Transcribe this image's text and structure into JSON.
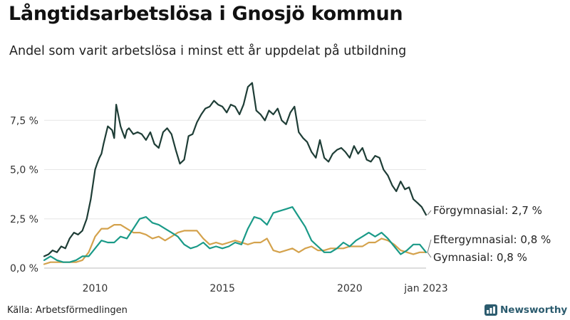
{
  "title": "Långtidsarbetslösa i Gnosjö kommun",
  "subtitle": "Andel som varit arbetslösa i minst ett år uppdelat på utbildning",
  "source": "Källa: Arbetsförmedlingen",
  "brand": {
    "name": "Newsworthy",
    "color": "#2b5b6e"
  },
  "chart_data": {
    "type": "line",
    "x_range": [
      2008.0,
      2023.0
    ],
    "ylim": [
      0,
      10
    ],
    "y_ticks": [
      0,
      2.5,
      5,
      7.5
    ],
    "y_tick_labels": [
      "0,0 %",
      "2,5 %",
      "5,0 %",
      "7,5 %"
    ],
    "x_ticks": [
      2010,
      2015,
      2020,
      2023.0
    ],
    "x_tick_labels": [
      "2010",
      "2015",
      "2020",
      "jan 2023"
    ],
    "grid": true,
    "legend": "direct-labels-right",
    "series": [
      {
        "name": "Förgymnasial",
        "end_label": "Förgymnasial: 2,7 %",
        "color": "#1e3d36",
        "x": [
          2008.0,
          2008.17,
          2008.33,
          2008.5,
          2008.67,
          2008.83,
          2009.0,
          2009.17,
          2009.33,
          2009.5,
          2009.67,
          2009.83,
          2010.0,
          2010.08,
          2010.17,
          2010.25,
          2010.33,
          2010.5,
          2010.67,
          2010.75,
          2010.83,
          2011.0,
          2011.08,
          2011.17,
          2011.25,
          2011.33,
          2011.5,
          2011.67,
          2011.83,
          2012.0,
          2012.17,
          2012.33,
          2012.5,
          2012.67,
          2012.83,
          2013.0,
          2013.17,
          2013.33,
          2013.5,
          2013.67,
          2013.83,
          2014.0,
          2014.17,
          2014.33,
          2014.5,
          2014.67,
          2014.83,
          2015.0,
          2015.17,
          2015.33,
          2015.5,
          2015.67,
          2015.83,
          2016.0,
          2016.17,
          2016.25,
          2016.33,
          2016.5,
          2016.67,
          2016.83,
          2017.0,
          2017.17,
          2017.33,
          2017.5,
          2017.67,
          2017.83,
          2018.0,
          2018.17,
          2018.33,
          2018.5,
          2018.67,
          2018.83,
          2019.0,
          2019.17,
          2019.33,
          2019.5,
          2019.67,
          2019.83,
          2020.0,
          2020.17,
          2020.33,
          2020.5,
          2020.67,
          2020.83,
          2021.0,
          2021.17,
          2021.33,
          2021.5,
          2021.67,
          2021.83,
          2022.0,
          2022.17,
          2022.33,
          2022.5,
          2022.67,
          2022.83,
          2023.0
        ],
        "values": [
          0.6,
          0.7,
          0.9,
          0.8,
          1.1,
          1.0,
          1.5,
          1.8,
          1.7,
          1.9,
          2.5,
          3.5,
          5.0,
          5.3,
          5.6,
          5.8,
          6.3,
          7.2,
          7.0,
          6.6,
          8.3,
          7.2,
          6.9,
          6.6,
          7.0,
          7.1,
          6.8,
          6.9,
          6.8,
          6.5,
          6.9,
          6.3,
          6.1,
          6.9,
          7.1,
          6.8,
          6.0,
          5.3,
          5.5,
          6.7,
          6.8,
          7.4,
          7.8,
          8.1,
          8.2,
          8.5,
          8.3,
          8.2,
          7.9,
          8.3,
          8.2,
          7.8,
          8.3,
          9.2,
          9.4,
          8.7,
          8.0,
          7.8,
          7.5,
          8.0,
          7.8,
          8.1,
          7.5,
          7.3,
          7.9,
          8.2,
          6.9,
          6.6,
          6.4,
          5.9,
          5.6,
          6.5,
          5.6,
          5.4,
          5.8,
          6.0,
          6.1,
          5.9,
          5.6,
          6.2,
          5.8,
          6.1,
          5.5,
          5.4,
          5.7,
          5.6,
          5.0,
          4.7,
          4.2,
          3.9,
          4.4,
          4.0,
          4.1,
          3.5,
          3.3,
          3.1,
          2.7
        ]
      },
      {
        "name": "Eftergymnasial",
        "end_label": "Eftergymnasial: 0,8 %",
        "color": "#1a9a88",
        "x": [
          2008.0,
          2008.25,
          2008.5,
          2008.75,
          2009.0,
          2009.25,
          2009.5,
          2009.75,
          2010.0,
          2010.25,
          2010.5,
          2010.75,
          2011.0,
          2011.25,
          2011.5,
          2011.75,
          2012.0,
          2012.25,
          2012.5,
          2012.75,
          2013.0,
          2013.25,
          2013.5,
          2013.75,
          2014.0,
          2014.25,
          2014.5,
          2014.75,
          2015.0,
          2015.25,
          2015.5,
          2015.75,
          2016.0,
          2016.25,
          2016.5,
          2016.75,
          2017.0,
          2017.25,
          2017.5,
          2017.75,
          2018.0,
          2018.25,
          2018.5,
          2018.75,
          2019.0,
          2019.25,
          2019.5,
          2019.75,
          2020.0,
          2020.25,
          2020.5,
          2020.75,
          2021.0,
          2021.25,
          2021.5,
          2021.75,
          2022.0,
          2022.25,
          2022.5,
          2022.75,
          2023.0
        ],
        "values": [
          0.4,
          0.6,
          0.4,
          0.3,
          0.3,
          0.4,
          0.6,
          0.6,
          1.0,
          1.4,
          1.3,
          1.3,
          1.6,
          1.5,
          2.0,
          2.5,
          2.6,
          2.3,
          2.2,
          2.0,
          1.8,
          1.6,
          1.2,
          1.0,
          1.1,
          1.3,
          1.0,
          1.1,
          1.0,
          1.1,
          1.3,
          1.2,
          2.0,
          2.6,
          2.5,
          2.2,
          2.8,
          2.9,
          3.0,
          3.1,
          2.6,
          2.1,
          1.4,
          1.1,
          0.8,
          0.8,
          1.0,
          1.3,
          1.1,
          1.4,
          1.6,
          1.8,
          1.6,
          1.8,
          1.5,
          1.1,
          0.7,
          0.9,
          1.2,
          1.2,
          0.8
        ]
      },
      {
        "name": "Gymnasial",
        "end_label": "Gymnasial: 0,8 %",
        "color": "#d4a24c",
        "x": [
          2008.0,
          2008.25,
          2008.5,
          2008.75,
          2009.0,
          2009.25,
          2009.5,
          2009.75,
          2010.0,
          2010.25,
          2010.5,
          2010.75,
          2011.0,
          2011.25,
          2011.5,
          2011.75,
          2012.0,
          2012.25,
          2012.5,
          2012.75,
          2013.0,
          2013.25,
          2013.5,
          2013.75,
          2014.0,
          2014.25,
          2014.5,
          2014.75,
          2015.0,
          2015.25,
          2015.5,
          2015.75,
          2016.0,
          2016.25,
          2016.5,
          2016.75,
          2017.0,
          2017.25,
          2017.5,
          2017.75,
          2018.0,
          2018.25,
          2018.5,
          2018.75,
          2019.0,
          2019.25,
          2019.5,
          2019.75,
          2020.0,
          2020.25,
          2020.5,
          2020.75,
          2021.0,
          2021.25,
          2021.5,
          2021.75,
          2022.0,
          2022.25,
          2022.5,
          2022.75,
          2023.0
        ],
        "values": [
          0.2,
          0.3,
          0.3,
          0.3,
          0.3,
          0.3,
          0.4,
          0.8,
          1.6,
          2.0,
          2.0,
          2.2,
          2.2,
          2.0,
          1.8,
          1.8,
          1.7,
          1.5,
          1.6,
          1.4,
          1.6,
          1.8,
          1.9,
          1.9,
          1.9,
          1.5,
          1.2,
          1.3,
          1.2,
          1.3,
          1.4,
          1.3,
          1.2,
          1.3,
          1.3,
          1.5,
          0.9,
          0.8,
          0.9,
          1.0,
          0.8,
          1.0,
          1.1,
          0.9,
          0.9,
          1.0,
          1.0,
          1.0,
          1.1,
          1.1,
          1.1,
          1.3,
          1.3,
          1.5,
          1.4,
          1.2,
          0.9,
          0.8,
          0.7,
          0.8,
          0.8
        ]
      }
    ]
  }
}
